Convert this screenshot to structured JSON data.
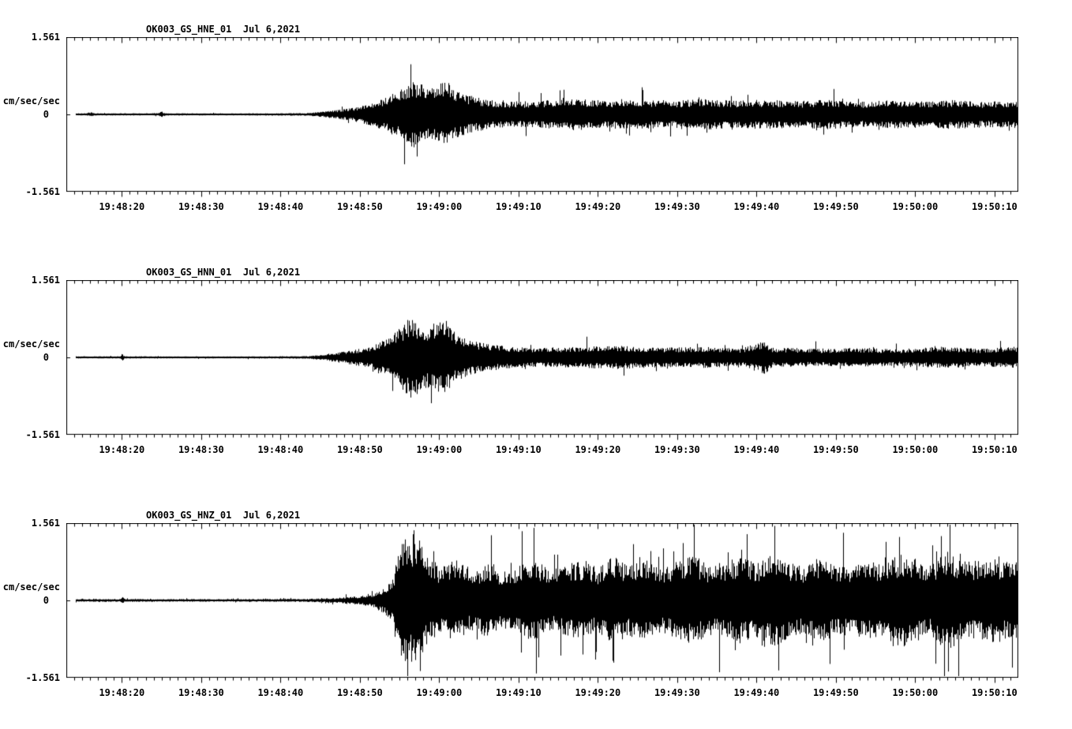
{
  "page": {
    "background": "#ffffff",
    "foreground": "#000000"
  },
  "axis": {
    "y_max_label": "1.561",
    "y_zero_label": "0",
    "y_min_label": "-1.561",
    "y_unit_label": "cm/sec/sec",
    "y_range": [
      -1.561,
      1.561
    ],
    "x_duration_seconds": 120,
    "x_tick_labels": [
      "19:48:20",
      "19:48:30",
      "19:48:40",
      "19:48:50",
      "19:49:00",
      "19:49:10",
      "19:49:20",
      "19:49:30",
      "19:49:40",
      "19:49:50",
      "19:50:00",
      "19:50:10"
    ],
    "x_tick_offsets_seconds": [
      7,
      17,
      27,
      37,
      47,
      57,
      67,
      77,
      87,
      97,
      107,
      117
    ],
    "minor_tick_interval_seconds": 1
  },
  "chart_data": [
    {
      "type": "line",
      "title": "OK003_GS_HNE_01  Jul 6,2021",
      "channel_id": "OK003_GS_HNE_01",
      "date": "Jul 6,2021",
      "ylabel": "cm/sec/sec",
      "ylim": [
        -1.561,
        1.561
      ],
      "y_tick_labels": [
        "1.561",
        "0",
        "-1.561"
      ],
      "x_tick_labels": [
        "19:48:20",
        "19:48:30",
        "19:48:40",
        "19:48:50",
        "19:49:00",
        "19:49:10",
        "19:49:20",
        "19:49:30",
        "19:49:40",
        "19:49:50",
        "19:50:00",
        "19:50:10"
      ],
      "envelope_amplitude_by_time_s": [
        [
          0,
          0.022
        ],
        [
          2.5,
          0.022
        ],
        [
          3,
          0.05
        ],
        [
          3.5,
          0.022
        ],
        [
          11.5,
          0.022
        ],
        [
          12,
          0.06
        ],
        [
          12.5,
          0.022
        ],
        [
          20,
          0.02
        ],
        [
          30,
          0.025
        ],
        [
          32,
          0.05
        ],
        [
          34,
          0.09
        ],
        [
          36,
          0.13
        ],
        [
          38,
          0.22
        ],
        [
          40,
          0.33
        ],
        [
          42,
          0.5
        ],
        [
          43.5,
          0.72
        ],
        [
          45,
          0.6
        ],
        [
          46.5,
          0.52
        ],
        [
          48,
          0.78
        ],
        [
          49,
          0.5
        ],
        [
          51,
          0.38
        ],
        [
          53,
          0.3
        ],
        [
          56,
          0.26
        ],
        [
          60,
          0.28
        ],
        [
          64,
          0.33
        ],
        [
          68,
          0.28
        ],
        [
          72,
          0.3
        ],
        [
          76,
          0.27
        ],
        [
          80,
          0.32
        ],
        [
          84,
          0.28
        ],
        [
          88,
          0.3
        ],
        [
          92,
          0.27
        ],
        [
          96,
          0.3
        ],
        [
          100,
          0.26
        ],
        [
          104,
          0.29
        ],
        [
          108,
          0.27
        ],
        [
          112,
          0.3
        ],
        [
          116,
          0.26
        ],
        [
          120,
          0.28
        ]
      ]
    },
    {
      "type": "line",
      "title": "OK003_GS_HNN_01  Jul 6,2021",
      "channel_id": "OK003_GS_HNN_01",
      "date": "Jul 6,2021",
      "ylabel": "cm/sec/sec",
      "ylim": [
        -1.561,
        1.561
      ],
      "y_tick_labels": [
        "1.561",
        "0",
        "-1.561"
      ],
      "x_tick_labels": [
        "19:48:20",
        "19:48:30",
        "19:48:40",
        "19:48:50",
        "19:49:00",
        "19:49:10",
        "19:49:20",
        "19:49:30",
        "19:49:40",
        "19:49:50",
        "19:50:00",
        "19:50:10"
      ],
      "envelope_amplitude_by_time_s": [
        [
          0,
          0.022
        ],
        [
          6.8,
          0.022
        ],
        [
          7,
          0.08
        ],
        [
          7.3,
          0.022
        ],
        [
          20,
          0.02
        ],
        [
          30,
          0.025
        ],
        [
          32,
          0.05
        ],
        [
          34,
          0.1
        ],
        [
          36,
          0.15
        ],
        [
          38,
          0.22
        ],
        [
          40,
          0.35
        ],
        [
          42,
          0.6
        ],
        [
          43.5,
          0.88
        ],
        [
          45,
          0.6
        ],
        [
          46,
          0.68
        ],
        [
          47.5,
          0.75
        ],
        [
          49,
          0.5
        ],
        [
          51,
          0.35
        ],
        [
          53,
          0.28
        ],
        [
          56,
          0.22
        ],
        [
          60,
          0.2
        ],
        [
          65,
          0.22
        ],
        [
          70,
          0.24
        ],
        [
          75,
          0.2
        ],
        [
          80,
          0.22
        ],
        [
          85,
          0.18
        ],
        [
          88,
          0.35
        ],
        [
          89,
          0.2
        ],
        [
          95,
          0.18
        ],
        [
          100,
          0.2
        ],
        [
          105,
          0.17
        ],
        [
          110,
          0.22
        ],
        [
          115,
          0.18
        ],
        [
          120,
          0.22
        ]
      ]
    },
    {
      "type": "line",
      "title": "OK003_GS_HNZ_01  Jul 6,2021",
      "channel_id": "OK003_GS_HNZ_01",
      "date": "Jul 6,2021",
      "ylabel": "cm/sec/sec",
      "ylim": [
        -1.561,
        1.561
      ],
      "y_tick_labels": [
        "1.561",
        "0",
        "-1.561"
      ],
      "x_tick_labels": [
        "19:48:20",
        "19:48:30",
        "19:48:40",
        "19:48:50",
        "19:49:00",
        "19:49:10",
        "19:49:20",
        "19:49:30",
        "19:49:40",
        "19:49:50",
        "19:50:00",
        "19:50:10"
      ],
      "envelope_amplitude_by_time_s": [
        [
          0,
          0.028
        ],
        [
          6.8,
          0.028
        ],
        [
          7,
          0.09
        ],
        [
          7.3,
          0.028
        ],
        [
          20,
          0.025
        ],
        [
          30,
          0.03
        ],
        [
          34,
          0.05
        ],
        [
          37,
          0.09
        ],
        [
          39,
          0.15
        ],
        [
          41,
          0.4
        ],
        [
          42.5,
          1.4
        ],
        [
          44,
          1.35
        ],
        [
          45.5,
          0.9
        ],
        [
          47,
          0.65
        ],
        [
          49,
          0.85
        ],
        [
          51,
          0.6
        ],
        [
          53,
          0.75
        ],
        [
          55,
          0.6
        ],
        [
          57,
          0.7
        ],
        [
          59,
          0.85
        ],
        [
          61,
          0.6
        ],
        [
          63,
          0.75
        ],
        [
          65,
          0.8
        ],
        [
          67,
          0.65
        ],
        [
          69,
          0.9
        ],
        [
          71,
          0.7
        ],
        [
          73,
          0.85
        ],
        [
          75,
          0.65
        ],
        [
          77,
          0.8
        ],
        [
          79,
          0.95
        ],
        [
          81,
          0.7
        ],
        [
          83,
          0.8
        ],
        [
          85,
          0.9
        ],
        [
          87,
          0.75
        ],
        [
          89,
          0.95
        ],
        [
          91,
          0.8
        ],
        [
          93,
          0.7
        ],
        [
          95,
          0.85
        ],
        [
          97,
          0.75
        ],
        [
          99,
          0.7
        ],
        [
          101,
          0.8
        ],
        [
          103,
          0.75
        ],
        [
          105,
          0.95
        ],
        [
          107,
          0.85
        ],
        [
          109,
          0.75
        ],
        [
          111,
          1.0
        ],
        [
          113,
          0.85
        ],
        [
          115,
          0.8
        ],
        [
          117,
          0.9
        ],
        [
          119,
          0.75
        ],
        [
          120,
          0.8
        ]
      ]
    }
  ]
}
